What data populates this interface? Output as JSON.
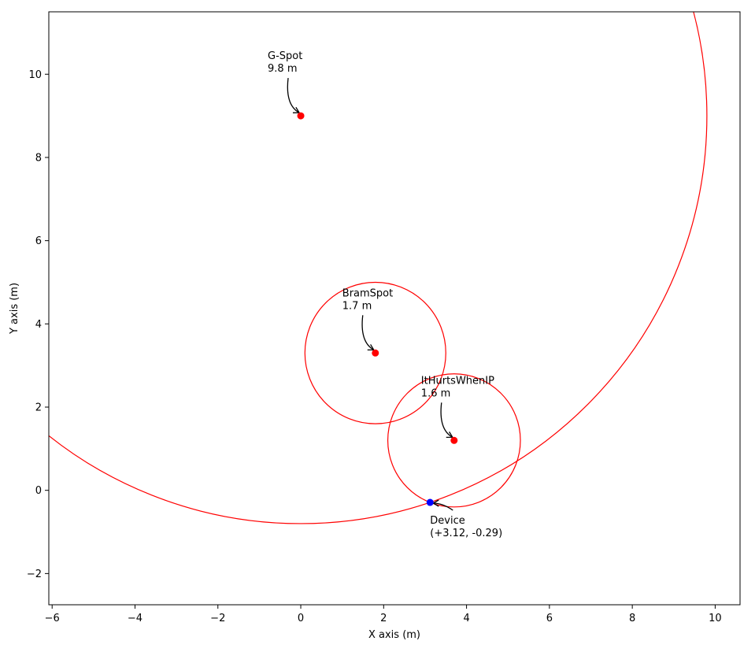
{
  "chart_data": {
    "type": "scatter",
    "title": "",
    "xlabel": "X axis (m)",
    "ylabel": "Y axis (m)",
    "xlim": [
      -6.08,
      10.6
    ],
    "ylim": [
      -2.75,
      11.5
    ],
    "xticks": [
      -6,
      -4,
      -2,
      0,
      2,
      4,
      6,
      8,
      10
    ],
    "yticks": [
      -2,
      0,
      2,
      4,
      6,
      8,
      10
    ],
    "xtick_labels": [
      "−6",
      "−4",
      "−2",
      "0",
      "2",
      "4",
      "6",
      "8",
      "10"
    ],
    "ytick_labels": [
      "−2",
      "0",
      "2",
      "4",
      "6",
      "8",
      "10"
    ],
    "grid": false,
    "colors": {
      "beacon": "#ff0000",
      "device": "#0000ff",
      "circle": "#ff0000",
      "arrow": "#000000"
    },
    "beacons": [
      {
        "name": "G-Spot",
        "x": 0.0,
        "y": 9.0,
        "radius": 9.8,
        "distance_label": "9.8 m"
      },
      {
        "name": "BramSpot",
        "x": 1.8,
        "y": 3.3,
        "radius": 1.7,
        "distance_label": "1.7 m"
      },
      {
        "name": "ItHurtsWhenIP",
        "x": 3.7,
        "y": 1.2,
        "radius": 1.6,
        "distance_label": "1.6 m"
      }
    ],
    "device": {
      "name": "Device",
      "x": 3.12,
      "y": -0.29,
      "coord_label": "(+3.12, -0.29)"
    }
  }
}
